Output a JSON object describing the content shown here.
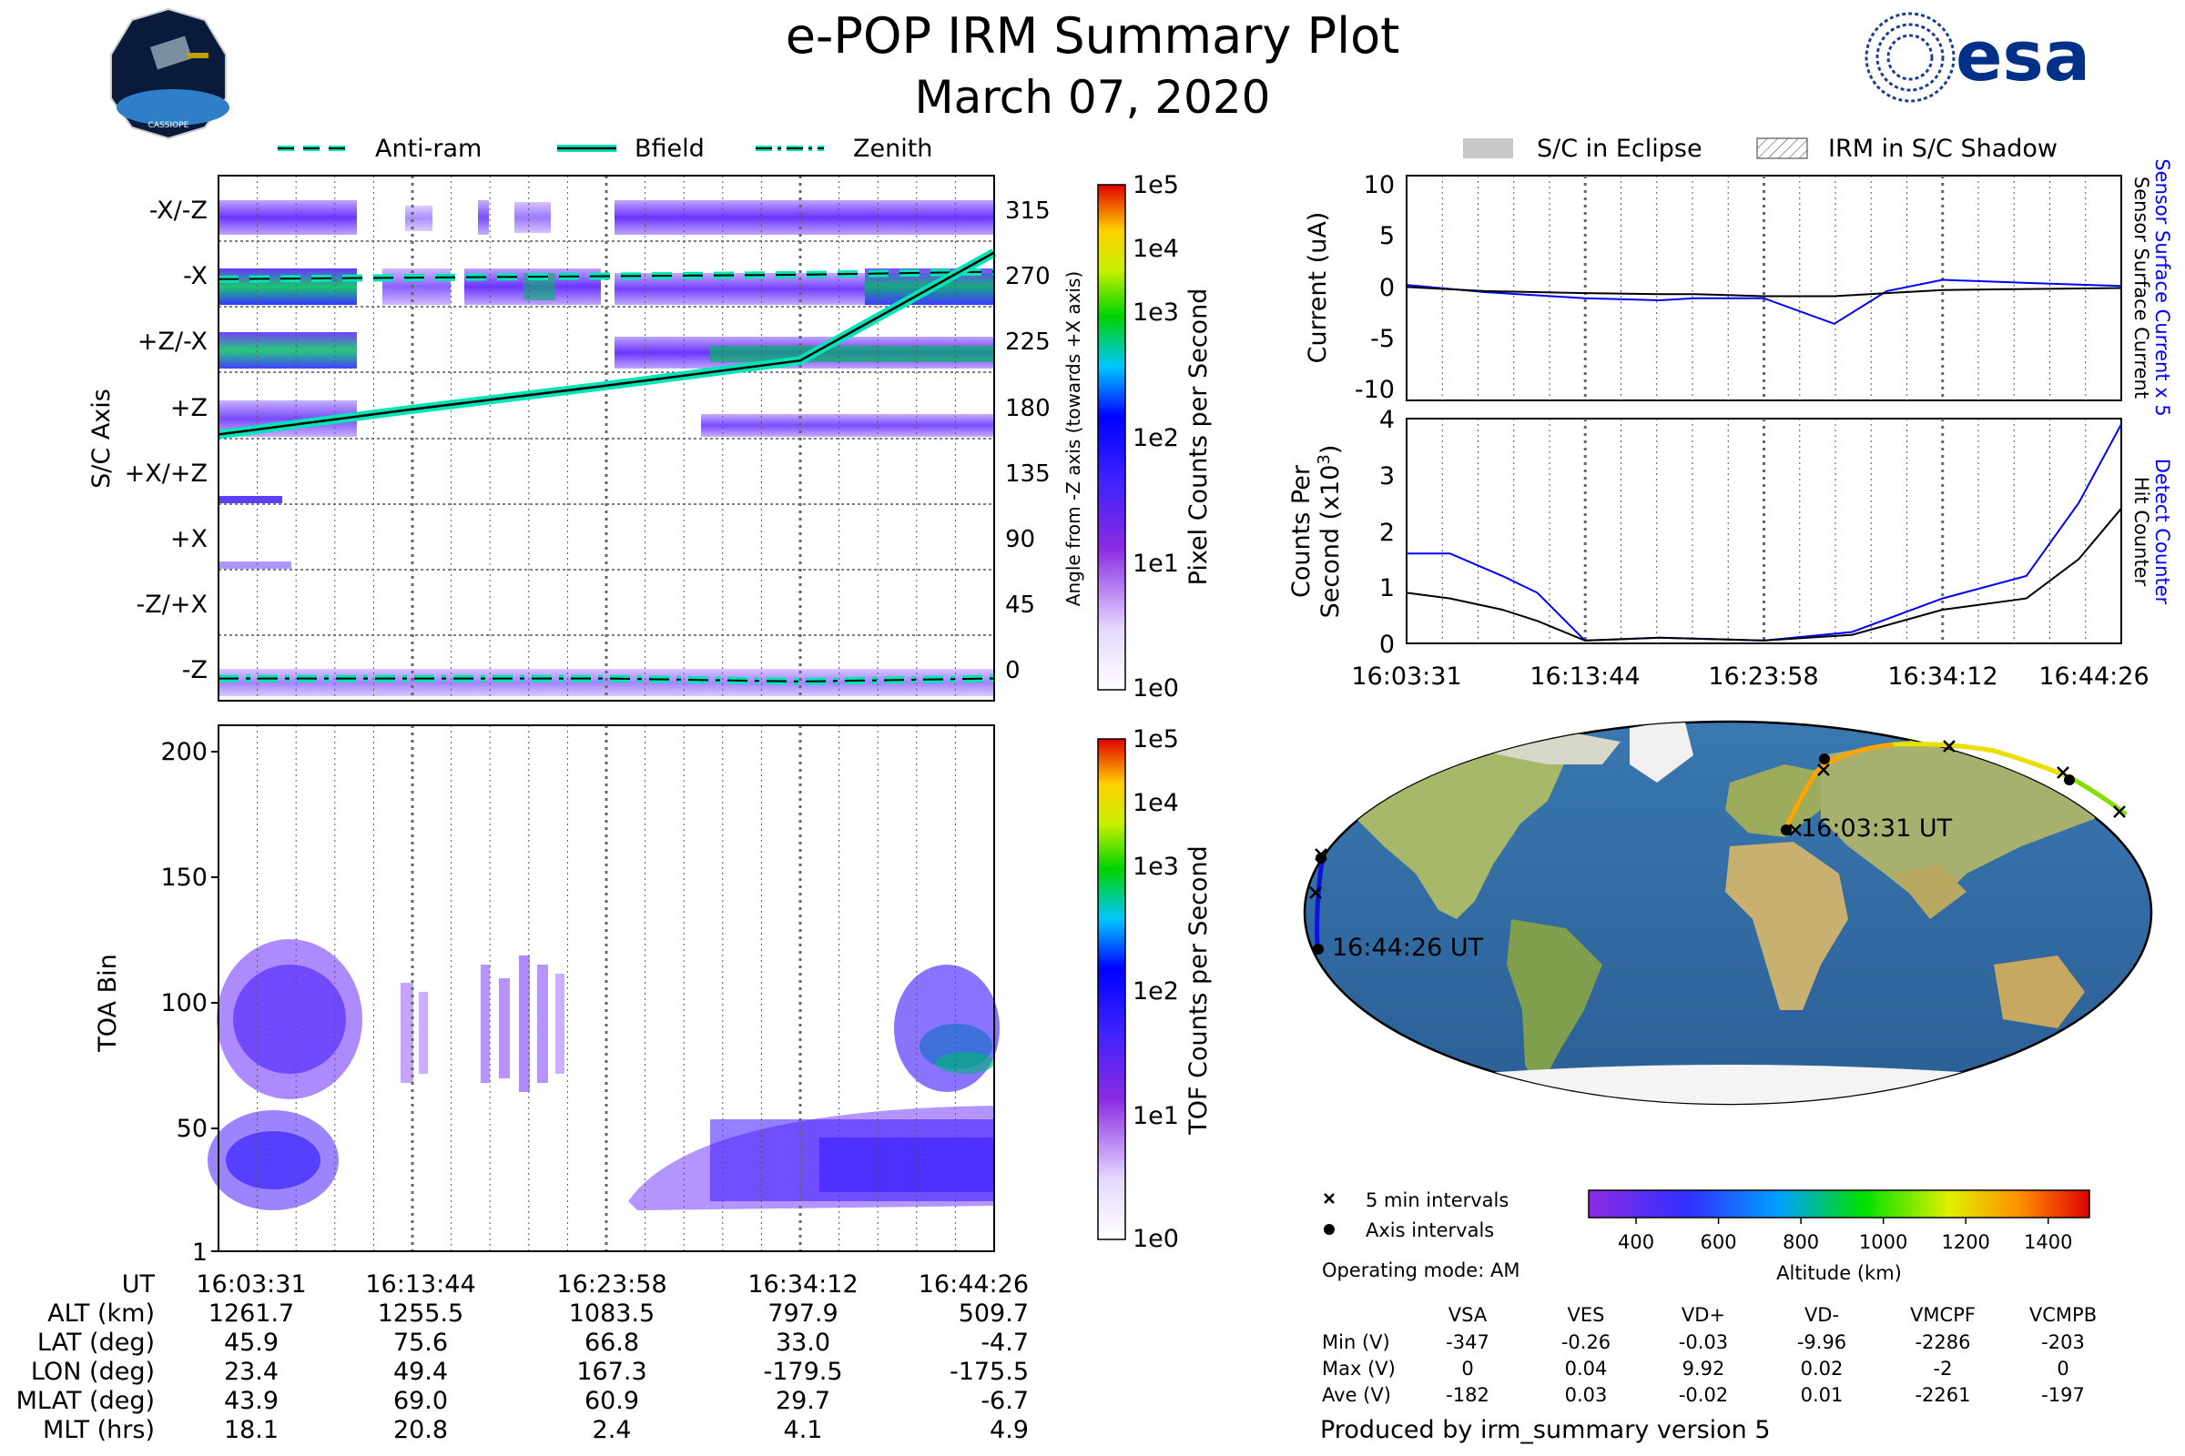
{
  "header": {
    "title": "e-POP IRM Summary Plot",
    "date": "March 07, 2020",
    "left_logo": "cassiope-mission-logo",
    "left_logo_caption": "CASSIOPE",
    "right_logo": "esa-logo",
    "right_logo_text": "esa"
  },
  "colors": {
    "brand_blue": "#003087",
    "bfield": "#00e5b8",
    "sensor_current": "#0000ff",
    "hit_counter": "#000000",
    "grid": "#555555"
  },
  "pixel_panel": {
    "legend": [
      "Anti-ram",
      "Bfield",
      "Zenith"
    ],
    "ylabel": "S/C Axis",
    "y_categories": [
      "-X/-Z",
      "-X",
      "+Z/-X",
      "+Z",
      "+X/+Z",
      "+X",
      "-Z/+X",
      "-Z"
    ],
    "right_ticks": [
      "315",
      "270",
      "225",
      "180",
      "135",
      "90",
      "45",
      "0"
    ],
    "right_label": "Angle from -Z axis (towards +X axis)",
    "colorbar_label": "Pixel Counts per Second",
    "colorbar_ticks": [
      "1e5",
      "1e4",
      "1e3",
      "1e2",
      "1e1",
      "1e0"
    ]
  },
  "toa_panel": {
    "ylabel": "TOA Bin",
    "y_ticks": [
      "200",
      "150",
      "100",
      "50",
      "1"
    ],
    "colorbar_label": "TOF Counts per Second",
    "colorbar_ticks": [
      "1e5",
      "1e4",
      "1e3",
      "1e2",
      "1e1",
      "1e0"
    ]
  },
  "ephemeris_table": {
    "row_labels": [
      "UT",
      "ALT (km)",
      "LAT (deg)",
      "LON (deg)",
      "MLAT (deg)",
      "MLT (hrs)"
    ],
    "columns": [
      [
        "16:03:31",
        "1261.7",
        "45.9",
        "23.4",
        "43.9",
        "18.1"
      ],
      [
        "16:13:44",
        "1255.5",
        "75.6",
        "49.4",
        "69.0",
        "20.8"
      ],
      [
        "16:23:58",
        "1083.5",
        "66.8",
        "167.3",
        "60.9",
        "2.4"
      ],
      [
        "16:34:12",
        "797.9",
        "33.0",
        "-179.5",
        "29.7",
        "4.1"
      ],
      [
        "16:44:26",
        "509.7",
        "-4.7",
        "-175.5",
        "-6.7",
        "4.9"
      ]
    ]
  },
  "shadow_legend": [
    "S/C in Eclipse",
    "IRM in S/C Shadow"
  ],
  "current_panel": {
    "ylabel": "Current (uA)",
    "y_ticks": [
      "10",
      "5",
      "0",
      "-5",
      "-10"
    ],
    "right_label_blue": "Sensor Surface Current x 5",
    "right_label_black": "Sensor Surface Current"
  },
  "counts_panel": {
    "ylabel_line1": "Counts Per",
    "ylabel_line2": "Second (x10",
    "ylabel_exp": "3",
    "ylabel_close": ")",
    "y_ticks": [
      "4",
      "3",
      "2",
      "1",
      "0"
    ],
    "x_ticks": [
      "16:03:31",
      "16:13:44",
      "16:23:58",
      "16:34:12",
      "16:44:26"
    ],
    "right_label_blue": "Detect Counter",
    "right_label_black": "Hit Counter"
  },
  "map": {
    "start_label": "16:03:31 UT",
    "end_label": "16:44:26 UT",
    "legend_5min": "5 min intervals",
    "legend_axis": "Axis intervals",
    "operating_mode": "Operating mode: AM",
    "altitude_label": "Altitude (km)",
    "altitude_ticks": [
      "400",
      "600",
      "800",
      "1000",
      "1200",
      "1400"
    ]
  },
  "voltage_table": {
    "headers": [
      "VSA",
      "VES",
      "VD+",
      "VD-",
      "VMCPF",
      "VCMPB"
    ],
    "rows": [
      {
        "label": "Min (V)",
        "values": [
          "-347",
          "-0.26",
          "-0.03",
          "-9.96",
          "-2286",
          "-203"
        ]
      },
      {
        "label": "Max (V)",
        "values": [
          "0",
          "0.04",
          "9.92",
          "0.02",
          "-2",
          "0"
        ]
      },
      {
        "label": "Ave (V)",
        "values": [
          "-182",
          "0.03",
          "-0.02",
          "0.01",
          "-2261",
          "-197"
        ]
      }
    ]
  },
  "footer": "Produced by irm_summary version 5",
  "chart_data": [
    {
      "type": "line",
      "panel": "sensor-surface-current",
      "x": [
        "16:03:31",
        "16:08:00",
        "16:13:44",
        "16:18:00",
        "16:20:00",
        "16:23:58",
        "16:28:00",
        "16:31:00",
        "16:34:12",
        "16:39:00",
        "16:44:26"
      ],
      "series": [
        {
          "name": "Sensor Surface Current x 5",
          "values": [
            0.3,
            -0.4,
            -1.0,
            -1.2,
            -1.0,
            -1.0,
            -3.5,
            -0.3,
            0.8,
            0.5,
            0.2
          ]
        },
        {
          "name": "Sensor Surface Current",
          "values": [
            0.1,
            -0.3,
            -0.5,
            -0.6,
            -0.6,
            -0.8,
            -0.8,
            -0.5,
            -0.2,
            -0.1,
            0.0
          ]
        }
      ],
      "ylabel": "Current (uA)",
      "ylim": [
        -11,
        11
      ]
    },
    {
      "type": "line",
      "panel": "counters",
      "x": [
        "16:03:31",
        "16:06:00",
        "16:09:00",
        "16:11:00",
        "16:13:44",
        "16:18:00",
        "16:23:58",
        "16:29:00",
        "16:34:12",
        "16:39:00",
        "16:42:00",
        "16:44:26"
      ],
      "series": [
        {
          "name": "Detect Counter",
          "values": [
            1.6,
            1.6,
            1.2,
            0.9,
            0.05,
            0.1,
            0.05,
            0.2,
            0.8,
            1.2,
            2.5,
            3.9
          ]
        },
        {
          "name": "Hit Counter",
          "values": [
            0.9,
            0.8,
            0.6,
            0.4,
            0.05,
            0.1,
            0.05,
            0.15,
            0.6,
            0.8,
            1.5,
            2.4
          ]
        }
      ],
      "ylabel": "Counts Per Second (x10^3)",
      "ylim": [
        0,
        4
      ]
    },
    {
      "type": "line",
      "panel": "sc-axis-angles",
      "x": [
        "16:03:31",
        "16:13:44",
        "16:23:58",
        "16:34:12",
        "16:44:26"
      ],
      "series": [
        {
          "name": "Anti-ram",
          "values": [
            270,
            271,
            272,
            273,
            275
          ]
        },
        {
          "name": "Bfield",
          "values": [
            165,
            182,
            198,
            215,
            288
          ]
        },
        {
          "name": "Zenith",
          "values": [
            0,
            0,
            0,
            -2,
            0
          ]
        }
      ],
      "ylabel": "Angle from -Z axis (towards +X axis)",
      "ylim": [
        -15,
        340
      ]
    },
    {
      "type": "heatmap",
      "panel": "toa-bin",
      "x": [
        "16:03:31",
        "16:13:44",
        "16:23:58",
        "16:34:12",
        "16:44:26"
      ],
      "ylabel": "TOA Bin",
      "ylim": [
        1,
        210
      ],
      "colorbar": "TOF Counts per Second"
    }
  ]
}
